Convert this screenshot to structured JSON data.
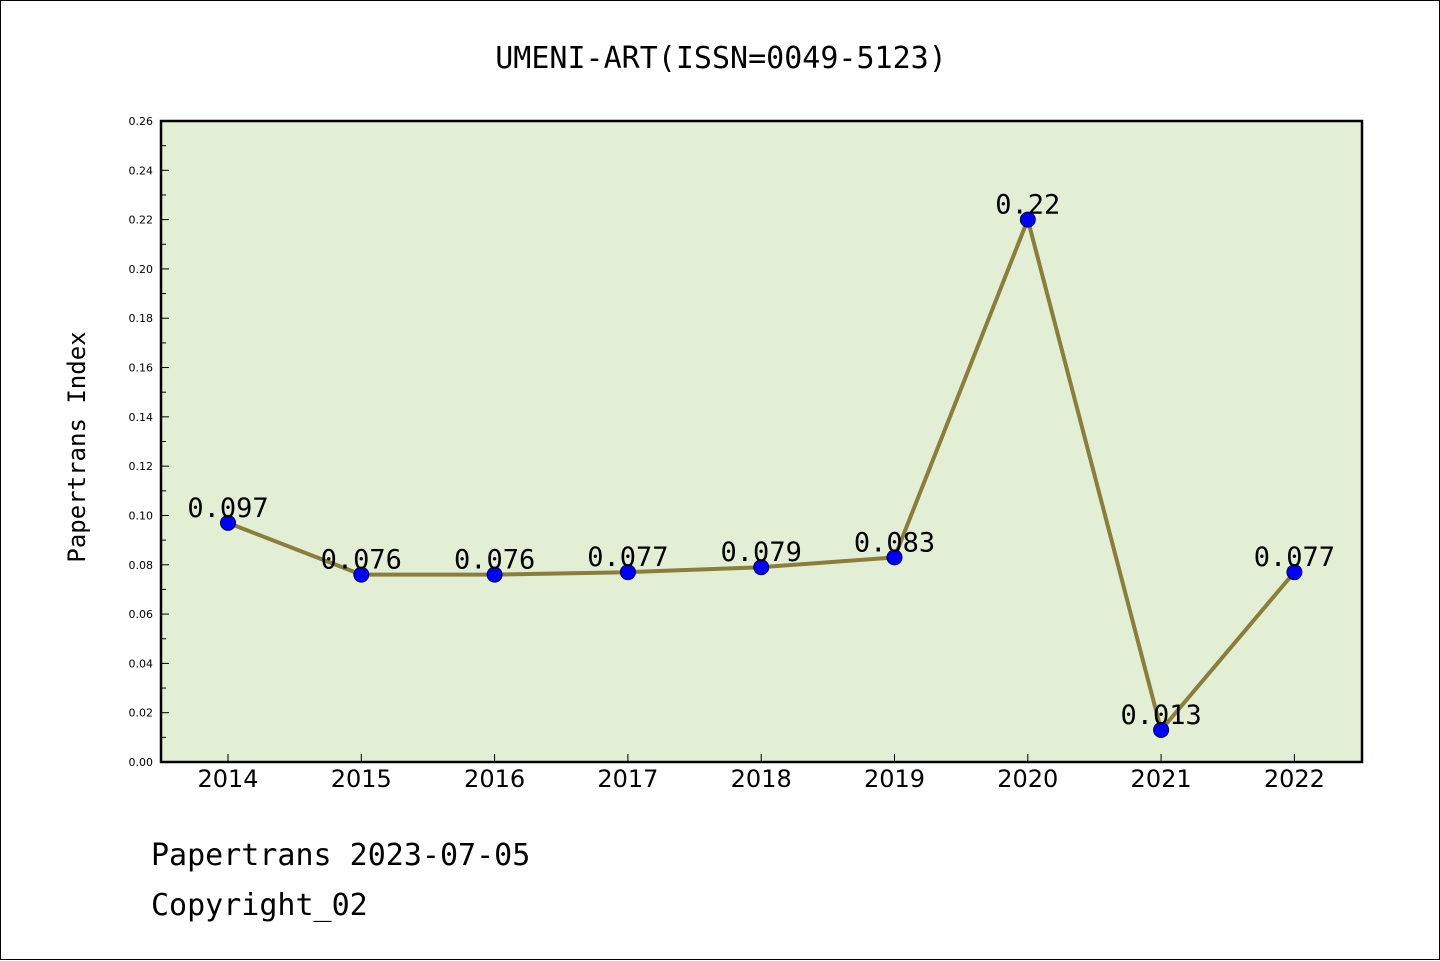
{
  "chart_data": {
    "type": "line",
    "title": "UMENI-ART(ISSN=0049-5123)",
    "xlabel": "",
    "ylabel": "Papertrans Index",
    "categories": [
      "2014",
      "2015",
      "2016",
      "2017",
      "2018",
      "2019",
      "2020",
      "2021",
      "2022"
    ],
    "values": [
      0.097,
      0.076,
      0.076,
      0.077,
      0.079,
      0.083,
      0.22,
      0.013,
      0.077
    ],
    "data_labels": [
      "0.097",
      "0.076",
      "0.076",
      "0.077",
      "0.079",
      "0.083",
      "0.22",
      "0.013",
      "0.077"
    ],
    "ylim": [
      0,
      0.26
    ],
    "yticks": [
      "0.00",
      "0.02",
      "0.04",
      "0.06",
      "0.08",
      "0.10",
      "0.12",
      "0.14",
      "0.16",
      "0.18",
      "0.20",
      "0.22",
      "0.24",
      "0.26"
    ],
    "grid": false,
    "legend": "none",
    "colors": {
      "plot_background": "#e2efd5",
      "line": "#8b7d3a",
      "marker": "#0000ff"
    }
  },
  "footer": {
    "date_line": "Papertrans 2023-07-05",
    "copyright": "Copyright_02"
  }
}
